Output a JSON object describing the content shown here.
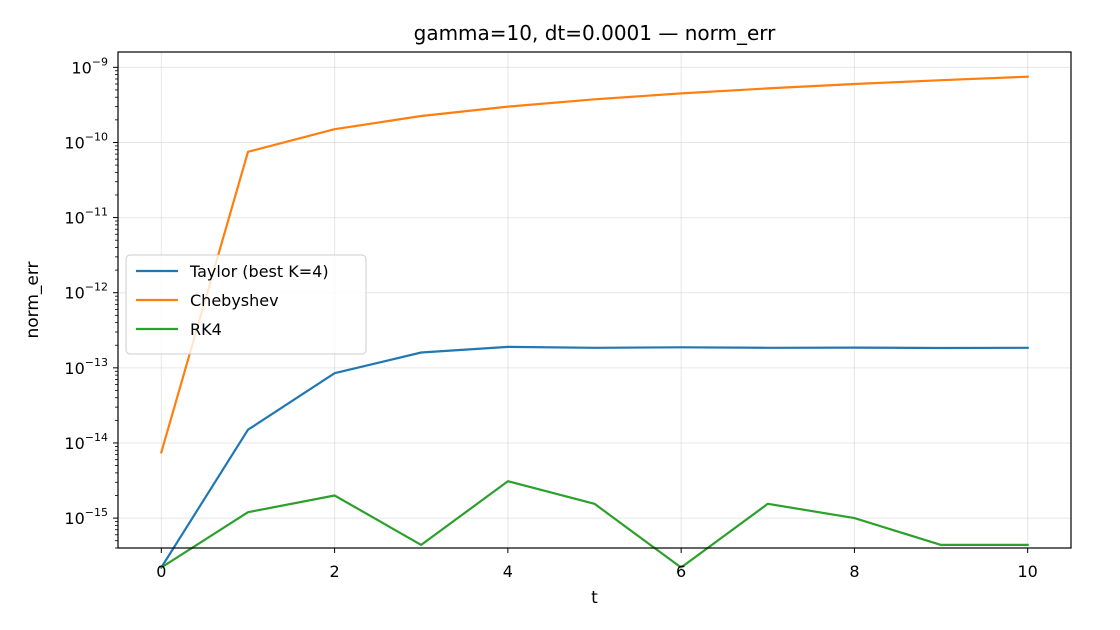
{
  "chart_data": {
    "type": "line",
    "title": "gamma=10, dt=0.0001 — norm_err",
    "xlabel": "t",
    "ylabel": "norm_err",
    "yscale": "log",
    "xlim": [
      -0.5,
      10.5
    ],
    "ylim": [
      4e-16,
      1.6e-09
    ],
    "grid": true,
    "legend_position": "center-left",
    "xticks": [
      0,
      2,
      4,
      6,
      8,
      10
    ],
    "yticks": [
      {
        "value": 1e-15,
        "base": "10",
        "exp": "−15"
      },
      {
        "value": 1e-14,
        "base": "10",
        "exp": "−14"
      },
      {
        "value": 1e-13,
        "base": "10",
        "exp": "−13"
      },
      {
        "value": 1e-12,
        "base": "10",
        "exp": "−12"
      },
      {
        "value": 1e-11,
        "base": "10",
        "exp": "−11"
      },
      {
        "value": 1e-10,
        "base": "10",
        "exp": "−10"
      },
      {
        "value": 1e-09,
        "base": "10",
        "exp": "−9"
      }
    ],
    "x": [
      0,
      1,
      2,
      3,
      4,
      5,
      6,
      7,
      8,
      9,
      10
    ],
    "series": [
      {
        "name": "Taylor (best K=4)",
        "color": "#1f77b4",
        "values": [
          2.2e-16,
          1.5e-14,
          8.5e-14,
          1.6e-13,
          1.9e-13,
          1.85e-13,
          1.88e-13,
          1.85e-13,
          1.86e-13,
          1.84e-13,
          1.85e-13
        ]
      },
      {
        "name": "Chebyshev",
        "color": "#ff7f0e",
        "values": [
          7.5e-15,
          7.5e-11,
          1.5e-10,
          2.25e-10,
          3e-10,
          3.75e-10,
          4.5e-10,
          5.25e-10,
          6e-10,
          6.75e-10,
          7.5e-10
        ]
      },
      {
        "name": "RK4",
        "color": "#2ca02c",
        "values": [
          2.2e-16,
          1.2e-15,
          2e-15,
          4.4e-16,
          3.1e-15,
          1.55e-15,
          2.2e-16,
          1.55e-15,
          1e-15,
          4.4e-16,
          4.4e-16
        ]
      }
    ]
  }
}
